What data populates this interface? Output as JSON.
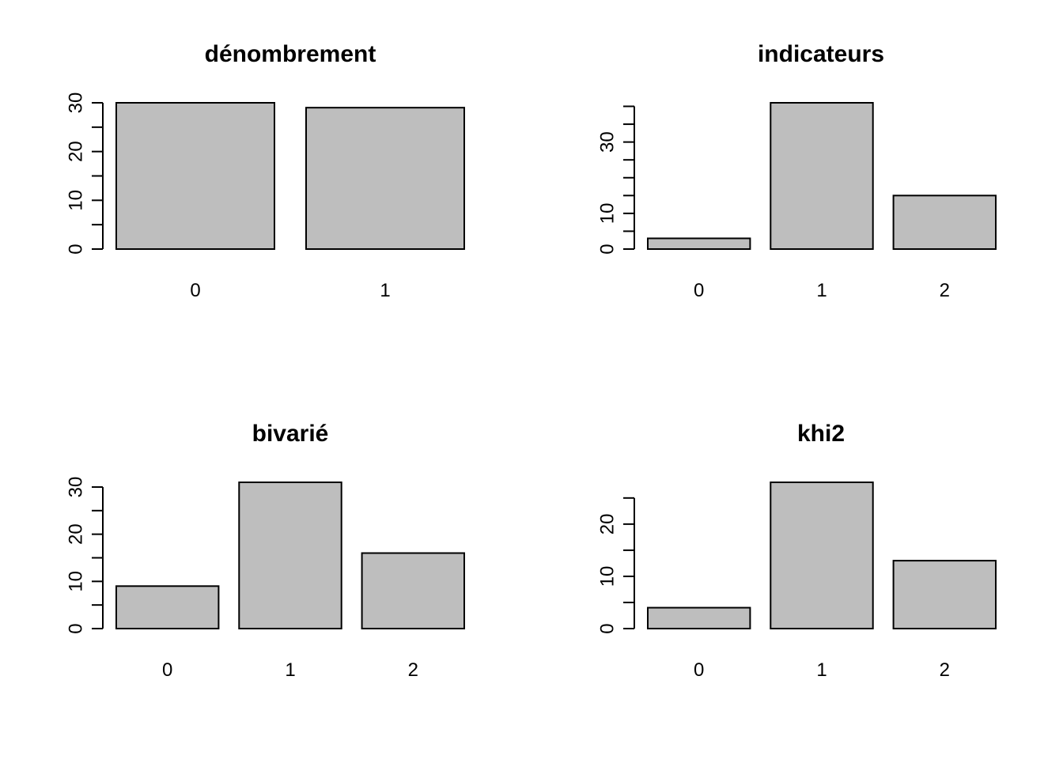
{
  "chart_data": [
    {
      "type": "bar",
      "title": "dénombrement",
      "categories": [
        "0",
        "1"
      ],
      "values": [
        30,
        29
      ],
      "ylim": [
        0,
        30
      ],
      "yticks": [
        0,
        10,
        20,
        30
      ],
      "grid": false
    },
    {
      "type": "bar",
      "title": "indicateurs",
      "categories": [
        "0",
        "1",
        "2"
      ],
      "values": [
        3,
        41,
        15
      ],
      "ylim": [
        0,
        40
      ],
      "yticks": [
        0,
        10,
        30
      ],
      "grid": false
    },
    {
      "type": "bar",
      "title": "bivarié",
      "categories": [
        "0",
        "1",
        "2"
      ],
      "values": [
        9,
        31,
        16
      ],
      "ylim": [
        0,
        30
      ],
      "yticks": [
        0,
        10,
        20,
        30
      ],
      "grid": false
    },
    {
      "type": "bar",
      "title": "khi2",
      "categories": [
        "0",
        "1",
        "2"
      ],
      "values": [
        4,
        28,
        13
      ],
      "ylim": [
        0,
        25
      ],
      "yticks": [
        0,
        10,
        20
      ],
      "grid": false
    }
  ]
}
